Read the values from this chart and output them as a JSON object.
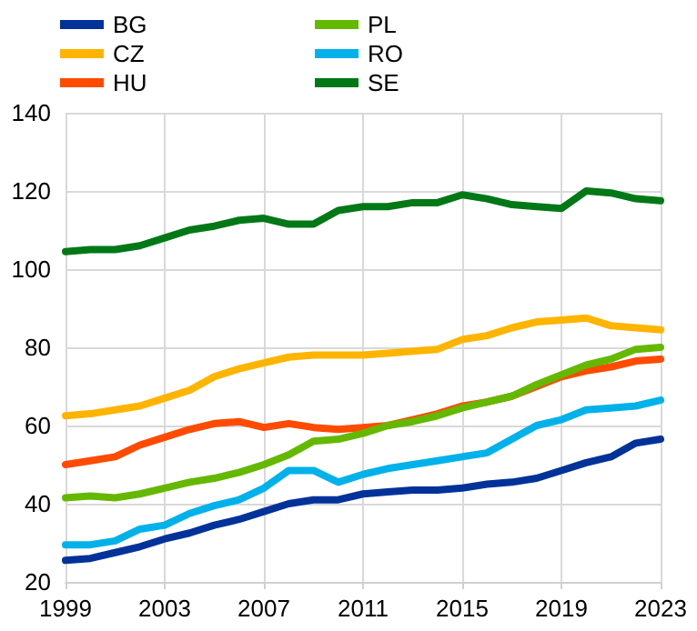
{
  "chart_data": {
    "type": "line",
    "x": [
      1999,
      2000,
      2001,
      2002,
      2003,
      2004,
      2005,
      2006,
      2007,
      2008,
      2009,
      2010,
      2011,
      2012,
      2013,
      2014,
      2015,
      2016,
      2017,
      2018,
      2019,
      2020,
      2021,
      2022,
      2023
    ],
    "series": [
      {
        "name": "BG",
        "color": "#003299",
        "values": [
          25.5,
          26,
          27.5,
          29,
          31,
          32.5,
          34.5,
          36,
          38,
          40,
          41,
          41,
          42.5,
          43,
          43.5,
          43.5,
          44,
          45,
          45.5,
          46.5,
          48.5,
          50.5,
          52,
          55.5,
          56.5
        ]
      },
      {
        "name": "CZ",
        "color": "#ffb400",
        "values": [
          62.5,
          63,
          64,
          65,
          67,
          69,
          72.5,
          74.5,
          76,
          77.5,
          78,
          78,
          78,
          78.5,
          79,
          79.5,
          82,
          83,
          85,
          86.5,
          87,
          87.5,
          85.5,
          85,
          84.5
        ]
      },
      {
        "name": "HU",
        "color": "#ff4b00",
        "values": [
          50,
          51,
          52,
          55,
          57,
          59,
          60.5,
          61,
          59.5,
          60.5,
          59.5,
          59,
          59.5,
          60,
          61.5,
          63,
          65,
          66,
          67.5,
          70,
          72.5,
          74,
          75,
          76.5,
          77
        ]
      },
      {
        "name": "PL",
        "color": "#65b800",
        "values": [
          41.5,
          42,
          41.5,
          42.5,
          44,
          45.5,
          46.5,
          48,
          50,
          52.5,
          56,
          56.5,
          58,
          60,
          61,
          62.5,
          64.5,
          66,
          67.5,
          70.5,
          73,
          75.5,
          77,
          79.5,
          80
        ]
      },
      {
        "name": "RO",
        "color": "#00b1ea",
        "values": [
          29.5,
          29.5,
          30.5,
          33.5,
          34.5,
          37.5,
          39.5,
          41,
          44,
          48.5,
          48.5,
          45.5,
          47.5,
          49,
          50,
          51,
          52,
          53,
          56.5,
          60,
          61.5,
          64,
          64.5,
          65,
          66.5
        ]
      },
      {
        "name": "SE",
        "color": "#007816",
        "values": [
          104.5,
          105,
          105,
          106,
          108,
          110,
          111,
          112.5,
          113,
          111.5,
          111.5,
          115,
          116,
          116,
          117,
          117,
          119,
          118,
          116.5,
          116,
          115.5,
          120,
          119.5,
          118,
          117.5
        ]
      }
    ],
    "xlim": [
      1999,
      2023
    ],
    "xticks": [
      1999,
      2003,
      2007,
      2011,
      2015,
      2019,
      2023
    ],
    "ylim": [
      20,
      140
    ],
    "yticks": [
      20,
      40,
      60,
      80,
      100,
      120,
      140
    ],
    "grid": true,
    "legend": "top left",
    "marker": "none",
    "line_style": "solid"
  }
}
